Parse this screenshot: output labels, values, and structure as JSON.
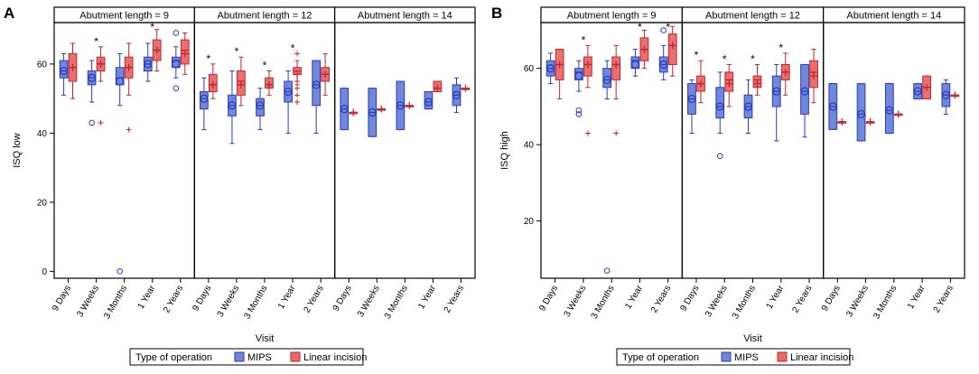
{
  "legend": {
    "title": "Type of operation",
    "items": [
      {
        "label": "MIPS",
        "fill": "#6f86d6",
        "stroke": "#2b3bbf"
      },
      {
        "label": "Linear incision",
        "fill": "#e86a6a",
        "stroke": "#c0262d"
      }
    ]
  },
  "colors": {
    "mips_fill": "#7088d8",
    "mips_stroke": "#2b3bbf",
    "li_fill": "#ea6f6f",
    "li_stroke": "#c0262d"
  },
  "chart_data": [
    {
      "type": "box",
      "panel_label": "A",
      "ylabel": "ISQ low",
      "xlabel": "Visit",
      "ylim": [
        -2,
        72
      ],
      "yticks": [
        0,
        20,
        40,
        60
      ],
      "categories": [
        "9 Days",
        "3 Weeks",
        "3 Months",
        "1 Year",
        "2 Years"
      ],
      "facets": [
        {
          "title": "Abutment length = 9",
          "groups": [
            {
              "star": false,
              "mips": {
                "min": 51,
                "q1": 56,
                "med": 58,
                "q3": 61,
                "max": 63,
                "mean": 58,
                "outliers": []
              },
              "li": {
                "min": 50,
                "q1": 55,
                "med": 59,
                "q3": 63,
                "max": 66,
                "mean": 59,
                "outliers": []
              }
            },
            {
              "star": true,
              "mips": {
                "min": 49,
                "q1": 54,
                "med": 56,
                "q3": 58,
                "max": 61,
                "mean": 56,
                "outliers": [
                  43
                ]
              },
              "li": {
                "min": 55,
                "q1": 58,
                "med": 60,
                "q3": 62,
                "max": 65,
                "mean": 60,
                "outliers": [
                  43
                ]
              }
            },
            {
              "star": false,
              "mips": {
                "min": 48,
                "q1": 54,
                "med": 56,
                "q3": 59,
                "max": 63,
                "mean": 55,
                "outliers": [
                  0
                ]
              },
              "li": {
                "min": 51,
                "q1": 56,
                "med": 59,
                "q3": 62,
                "max": 66,
                "mean": 59,
                "outliers": [
                  41
                ]
              }
            },
            {
              "star": true,
              "mips": {
                "min": 55,
                "q1": 58,
                "med": 60,
                "q3": 62,
                "max": 66,
                "mean": 60,
                "outliers": []
              },
              "li": {
                "min": 58,
                "q1": 61,
                "med": 64,
                "q3": 67,
                "max": 70,
                "mean": 64,
                "outliers": []
              }
            },
            {
              "star": false,
              "mips": {
                "min": 56,
                "q1": 59,
                "med": 61,
                "q3": 62,
                "max": 65,
                "mean": 60,
                "outliers": [
                  53,
                  69
                ]
              },
              "li": {
                "min": 57,
                "q1": 60,
                "med": 64,
                "q3": 67,
                "max": 69,
                "mean": 63,
                "outliers": []
              }
            }
          ]
        },
        {
          "title": "Abutment length = 12",
          "groups": [
            {
              "star": true,
              "mips": {
                "min": 41,
                "q1": 47,
                "med": 50,
                "q3": 52,
                "max": 56,
                "mean": 50,
                "outliers": []
              },
              "li": {
                "min": 50,
                "q1": 52,
                "med": 54,
                "q3": 57,
                "max": 60,
                "mean": 54,
                "outliers": []
              }
            },
            {
              "star": true,
              "mips": {
                "min": 37,
                "q1": 45,
                "med": 48,
                "q3": 51,
                "max": 58,
                "mean": 48,
                "outliers": []
              },
              "li": {
                "min": 48,
                "q1": 51,
                "med": 55,
                "q3": 58,
                "max": 62,
                "mean": 54,
                "outliers": []
              }
            },
            {
              "star": true,
              "mips": {
                "min": 41,
                "q1": 45,
                "med": 48,
                "q3": 50,
                "max": 53,
                "mean": 48,
                "outliers": []
              },
              "li": {
                "min": 51,
                "q1": 53,
                "med": 54,
                "q3": 56,
                "max": 58,
                "mean": 54,
                "outliers": []
              }
            },
            {
              "star": true,
              "mips": {
                "min": 40,
                "q1": 49,
                "med": 52,
                "q3": 55,
                "max": 58,
                "mean": 52,
                "outliers": []
              },
              "li": {
                "min": 54,
                "q1": 57,
                "med": 58,
                "q3": 59,
                "max": 61,
                "mean": 57,
                "outliers": [
                  49,
                  51,
                  53,
                  55,
                  63
                ]
              }
            },
            {
              "star": false,
              "mips": {
                "min": 40,
                "q1": 48,
                "med": 54,
                "q3": 61,
                "max": 61,
                "mean": 54,
                "outliers": []
              },
              "li": {
                "min": 51,
                "q1": 55,
                "med": 57,
                "q3": 59,
                "max": 63,
                "mean": 57,
                "outliers": []
              }
            }
          ]
        },
        {
          "title": "Abutment length = 14",
          "groups": [
            {
              "star": false,
              "mips": {
                "min": 41,
                "q1": 41,
                "med": 47,
                "q3": 53,
                "max": 53,
                "mean": 47,
                "outliers": []
              },
              "li": {
                "min": 46,
                "q1": 46,
                "med": 46,
                "q3": 46,
                "max": 46,
                "mean": 46,
                "outliers": []
              }
            },
            {
              "star": false,
              "mips": {
                "min": 39,
                "q1": 39,
                "med": 46,
                "q3": 53,
                "max": 53,
                "mean": 46,
                "outliers": []
              },
              "li": {
                "min": 47,
                "q1": 47,
                "med": 47,
                "q3": 47,
                "max": 47,
                "mean": 47,
                "outliers": []
              }
            },
            {
              "star": false,
              "mips": {
                "min": 41,
                "q1": 41,
                "med": 48,
                "q3": 55,
                "max": 55,
                "mean": 48,
                "outliers": []
              },
              "li": {
                "min": 48,
                "q1": 48,
                "med": 48,
                "q3": 48,
                "max": 48,
                "mean": 48,
                "outliers": []
              }
            },
            {
              "star": false,
              "mips": {
                "min": 47,
                "q1": 47,
                "med": 49,
                "q3": 52,
                "max": 52,
                "mean": 49,
                "outliers": []
              },
              "li": {
                "min": 52,
                "q1": 52,
                "med": 53,
                "q3": 55,
                "max": 55,
                "mean": 53,
                "outliers": []
              }
            },
            {
              "star": false,
              "mips": {
                "min": 46,
                "q1": 48,
                "med": 51,
                "q3": 54,
                "max": 56,
                "mean": 51,
                "outliers": []
              },
              "li": {
                "min": 53,
                "q1": 53,
                "med": 53,
                "q3": 53,
                "max": 53,
                "mean": 53,
                "outliers": []
              }
            }
          ]
        }
      ]
    },
    {
      "type": "box",
      "panel_label": "B",
      "ylabel": "ISQ high",
      "xlabel": "Visit",
      "ylim": [
        5,
        72
      ],
      "yticks": [
        20,
        40,
        60
      ],
      "categories": [
        "9 Days",
        "3 Weeks",
        "3 Months",
        "1 Year",
        "2 Years"
      ],
      "facets": [
        {
          "title": "Abutment length = 9",
          "groups": [
            {
              "star": false,
              "mips": {
                "min": 56,
                "q1": 58,
                "med": 60,
                "q3": 62,
                "max": 64,
                "mean": 60,
                "outliers": []
              },
              "li": {
                "min": 52,
                "q1": 57,
                "med": 61,
                "q3": 65,
                "max": 65,
                "mean": 61,
                "outliers": []
              }
            },
            {
              "star": true,
              "mips": {
                "min": 54,
                "q1": 57,
                "med": 59,
                "q3": 60,
                "max": 62,
                "mean": 58,
                "outliers": [
                  48,
                  49
                ]
              },
              "li": {
                "min": 55,
                "q1": 58,
                "med": 61,
                "q3": 63,
                "max": 66,
                "mean": 61,
                "outliers": [
                  43
                ]
              }
            },
            {
              "star": false,
              "mips": {
                "min": 52,
                "q1": 55,
                "med": 57,
                "q3": 60,
                "max": 62,
                "mean": 57,
                "outliers": [
                  7
                ]
              },
              "li": {
                "min": 52,
                "q1": 57,
                "med": 61,
                "q3": 63,
                "max": 66,
                "mean": 61,
                "outliers": [
                  43
                ]
              }
            },
            {
              "star": true,
              "mips": {
                "min": 58,
                "q1": 60,
                "med": 62,
                "q3": 63,
                "max": 65,
                "mean": 61,
                "outliers": []
              },
              "li": {
                "min": 60,
                "q1": 62,
                "med": 65,
                "q3": 68,
                "max": 70,
                "mean": 65,
                "outliers": []
              }
            },
            {
              "star": true,
              "mips": {
                "min": 57,
                "q1": 59,
                "med": 61,
                "q3": 63,
                "max": 66,
                "mean": 61,
                "outliers": [
                  70
                ]
              },
              "li": {
                "min": 58,
                "q1": 61,
                "med": 66,
                "q3": 69,
                "max": 71,
                "mean": 66,
                "outliers": []
              }
            }
          ]
        },
        {
          "title": "Abutment length = 12",
          "groups": [
            {
              "star": true,
              "mips": {
                "min": 43,
                "q1": 48,
                "med": 52,
                "q3": 56,
                "max": 57,
                "mean": 52,
                "outliers": []
              },
              "li": {
                "min": 51,
                "q1": 54,
                "med": 56,
                "q3": 58,
                "max": 62,
                "mean": 56,
                "outliers": []
              }
            },
            {
              "star": true,
              "mips": {
                "min": 43,
                "q1": 47,
                "med": 50,
                "q3": 55,
                "max": 59,
                "mean": 50,
                "outliers": [
                  37
                ]
              },
              "li": {
                "min": 50,
                "q1": 54,
                "med": 57,
                "q3": 59,
                "max": 61,
                "mean": 56,
                "outliers": []
              }
            },
            {
              "star": true,
              "mips": {
                "min": 43,
                "q1": 47,
                "med": 50,
                "q3": 53,
                "max": 57,
                "mean": 50,
                "outliers": []
              },
              "li": {
                "min": 53,
                "q1": 55,
                "med": 57,
                "q3": 58,
                "max": 61,
                "mean": 56,
                "outliers": []
              }
            },
            {
              "star": true,
              "mips": {
                "min": 41,
                "q1": 50,
                "med": 54,
                "q3": 58,
                "max": 61,
                "mean": 54,
                "outliers": []
              },
              "li": {
                "min": 53,
                "q1": 57,
                "med": 59,
                "q3": 61,
                "max": 64,
                "mean": 59,
                "outliers": []
              }
            },
            {
              "star": false,
              "mips": {
                "min": 42,
                "q1": 48,
                "med": 54,
                "q3": 61,
                "max": 61,
                "mean": 54,
                "outliers": []
              },
              "li": {
                "min": 51,
                "q1": 55,
                "med": 59,
                "q3": 62,
                "max": 65,
                "mean": 58,
                "outliers": []
              }
            }
          ]
        },
        {
          "title": "Abutment length = 14",
          "groups": [
            {
              "star": false,
              "mips": {
                "min": 44,
                "q1": 44,
                "med": 50,
                "q3": 56,
                "max": 56,
                "mean": 50,
                "outliers": []
              },
              "li": {
                "min": 46,
                "q1": 46,
                "med": 46,
                "q3": 46,
                "max": 46,
                "mean": 46,
                "outliers": []
              }
            },
            {
              "star": false,
              "mips": {
                "min": 41,
                "q1": 41,
                "med": 48,
                "q3": 56,
                "max": 56,
                "mean": 48,
                "outliers": []
              },
              "li": {
                "min": 46,
                "q1": 46,
                "med": 46,
                "q3": 46,
                "max": 46,
                "mean": 46,
                "outliers": []
              }
            },
            {
              "star": false,
              "mips": {
                "min": 43,
                "q1": 43,
                "med": 49,
                "q3": 56,
                "max": 56,
                "mean": 49,
                "outliers": []
              },
              "li": {
                "min": 48,
                "q1": 48,
                "med": 48,
                "q3": 48,
                "max": 48,
                "mean": 48,
                "outliers": []
              }
            },
            {
              "star": false,
              "mips": {
                "min": 52,
                "q1": 52,
                "med": 54,
                "q3": 56,
                "max": 56,
                "mean": 54,
                "outliers": []
              },
              "li": {
                "min": 52,
                "q1": 52,
                "med": 55,
                "q3": 58,
                "max": 58,
                "mean": 55,
                "outliers": []
              }
            },
            {
              "star": false,
              "mips": {
                "min": 48,
                "q1": 50,
                "med": 53,
                "q3": 56,
                "max": 57,
                "mean": 53,
                "outliers": []
              },
              "li": {
                "min": 53,
                "q1": 53,
                "med": 53,
                "q3": 53,
                "max": 53,
                "mean": 53,
                "outliers": []
              }
            }
          ]
        }
      ]
    }
  ]
}
